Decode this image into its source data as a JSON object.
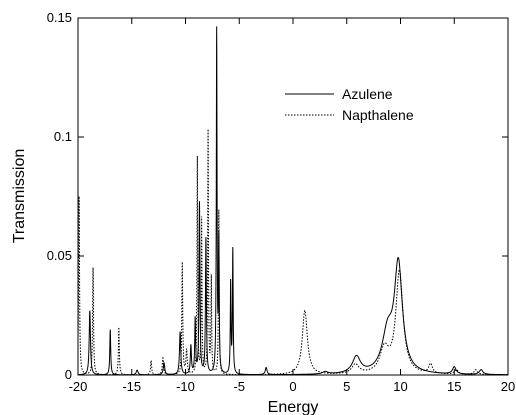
{
  "chart_data": {
    "type": "line",
    "title": "",
    "xlabel": "Energy",
    "ylabel": "Transmission",
    "xlim": [
      -20,
      20
    ],
    "ylim": [
      0,
      0.15
    ],
    "grid": false,
    "legend_position": "top-right",
    "xticks": [
      -20,
      -15,
      -10,
      -5,
      0,
      5,
      10,
      15,
      20
    ],
    "yticks": [
      {
        "value": 0,
        "label": "0"
      },
      {
        "value": 0.05,
        "label": "0.05"
      },
      {
        "value": 0.1,
        "label": "0.1"
      },
      {
        "value": 0.15,
        "label": "0.15"
      }
    ],
    "series": [
      {
        "name": "Azulene",
        "style": "solid",
        "color": "#000000",
        "peaks": [
          {
            "x": -18.9,
            "h": 0.027,
            "w": 0.07
          },
          {
            "x": -17.0,
            "h": 0.019,
            "w": 0.05
          },
          {
            "x": -14.5,
            "h": 0.002,
            "w": 0.1
          },
          {
            "x": -12.0,
            "h": 0.005,
            "w": 0.08
          },
          {
            "x": -10.5,
            "h": 0.018,
            "w": 0.07
          },
          {
            "x": -9.5,
            "h": 0.012,
            "w": 0.06
          },
          {
            "x": -9.1,
            "h": 0.023,
            "w": 0.05
          },
          {
            "x": -8.7,
            "h": 0.072,
            "w": 0.05
          },
          {
            "x": -8.1,
            "h": 0.057,
            "w": 0.05
          },
          {
            "x": -7.1,
            "h": 0.144,
            "w": 0.04
          },
          {
            "x": -6.9,
            "h": 0.055,
            "w": 0.04
          },
          {
            "x": -5.8,
            "h": 0.038,
            "w": 0.04
          },
          {
            "x": -5.6,
            "h": 0.052,
            "w": 0.04
          },
          {
            "x": -2.5,
            "h": 0.003,
            "w": 0.1
          },
          {
            "x": 3.0,
            "h": 0.001,
            "w": 0.3
          },
          {
            "x": 5.9,
            "h": 0.007,
            "w": 0.45
          },
          {
            "x": 8.8,
            "h": 0.016,
            "w": 0.6
          },
          {
            "x": 9.8,
            "h": 0.045,
            "w": 0.45
          },
          {
            "x": 15.0,
            "h": 0.003,
            "w": 0.2
          },
          {
            "x": 17.5,
            "h": 0.002,
            "w": 0.2
          }
        ]
      },
      {
        "name": "Napthalene",
        "style": "dotted",
        "color": "#000000",
        "peaks": [
          {
            "x": -19.9,
            "h": 0.075,
            "w": 0.05
          },
          {
            "x": -18.6,
            "h": 0.045,
            "w": 0.05
          },
          {
            "x": -16.2,
            "h": 0.02,
            "w": 0.05
          },
          {
            "x": -13.2,
            "h": 0.006,
            "w": 0.06
          },
          {
            "x": -12.1,
            "h": 0.007,
            "w": 0.07
          },
          {
            "x": -10.3,
            "h": 0.047,
            "w": 0.05
          },
          {
            "x": -9.9,
            "h": 0.01,
            "w": 0.07
          },
          {
            "x": -8.9,
            "h": 0.091,
            "w": 0.04
          },
          {
            "x": -8.5,
            "h": 0.065,
            "w": 0.04
          },
          {
            "x": -7.9,
            "h": 0.102,
            "w": 0.04
          },
          {
            "x": -7.6,
            "h": 0.04,
            "w": 0.04
          },
          {
            "x": -6.9,
            "h": 0.069,
            "w": 0.04
          },
          {
            "x": 1.1,
            "h": 0.027,
            "w": 0.28
          },
          {
            "x": 5.8,
            "h": 0.004,
            "w": 0.4
          },
          {
            "x": 8.5,
            "h": 0.01,
            "w": 0.5
          },
          {
            "x": 9.9,
            "h": 0.043,
            "w": 0.4
          },
          {
            "x": 12.8,
            "h": 0.004,
            "w": 0.2
          },
          {
            "x": 15.2,
            "h": 0.002,
            "w": 0.2
          },
          {
            "x": 17.0,
            "h": 0.002,
            "w": 0.2
          }
        ]
      }
    ]
  }
}
